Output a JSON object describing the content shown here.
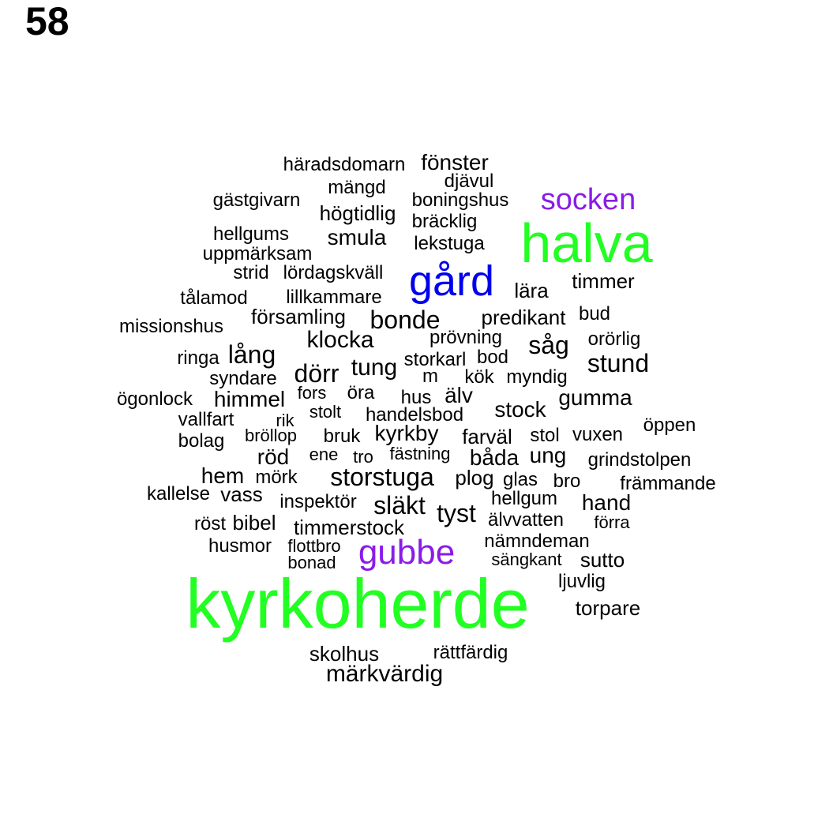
{
  "page_number": "58",
  "colors": {
    "default": "#000000",
    "green": "#22ff22",
    "blue": "#0000ee",
    "purple": "#8a1be8"
  },
  "words": [
    {
      "text": "kyrkoherde",
      "color": "green"
    },
    {
      "text": "halva",
      "color": "green"
    },
    {
      "text": "gård",
      "color": "blue"
    },
    {
      "text": "socken",
      "color": "purple"
    },
    {
      "text": "gubbe",
      "color": "purple"
    },
    {
      "text": "häradsdomarn"
    },
    {
      "text": "fönster"
    },
    {
      "text": "djävul"
    },
    {
      "text": "mängd"
    },
    {
      "text": "boningshus"
    },
    {
      "text": "gästgivarn"
    },
    {
      "text": "högtidlig"
    },
    {
      "text": "bräcklig"
    },
    {
      "text": "hellgums"
    },
    {
      "text": "smula"
    },
    {
      "text": "lekstuga"
    },
    {
      "text": "uppmärksam"
    },
    {
      "text": "strid"
    },
    {
      "text": "lördagskväll"
    },
    {
      "text": "timmer"
    },
    {
      "text": "lära"
    },
    {
      "text": "tålamod"
    },
    {
      "text": "lillkammare"
    },
    {
      "text": "församling"
    },
    {
      "text": "bonde"
    },
    {
      "text": "predikant"
    },
    {
      "text": "bud"
    },
    {
      "text": "missionshus"
    },
    {
      "text": "klocka"
    },
    {
      "text": "prövning"
    },
    {
      "text": "såg"
    },
    {
      "text": "orörlig"
    },
    {
      "text": "ringa"
    },
    {
      "text": "lång"
    },
    {
      "text": "storkarl"
    },
    {
      "text": "bod"
    },
    {
      "text": "stund"
    },
    {
      "text": "syndare"
    },
    {
      "text": "dörr"
    },
    {
      "text": "tung"
    },
    {
      "text": "m"
    },
    {
      "text": "kök"
    },
    {
      "text": "myndig"
    },
    {
      "text": "ögonlock"
    },
    {
      "text": "himmel"
    },
    {
      "text": "fors"
    },
    {
      "text": "öra"
    },
    {
      "text": "hus"
    },
    {
      "text": "älv"
    },
    {
      "text": "gumma"
    },
    {
      "text": "vallfart"
    },
    {
      "text": "rik"
    },
    {
      "text": "stolt"
    },
    {
      "text": "handelsbod"
    },
    {
      "text": "stock"
    },
    {
      "text": "öppen"
    },
    {
      "text": "bolag"
    },
    {
      "text": "bröllop"
    },
    {
      "text": "bruk"
    },
    {
      "text": "kyrkby"
    },
    {
      "text": "farväl"
    },
    {
      "text": "stol"
    },
    {
      "text": "vuxen"
    },
    {
      "text": "röd"
    },
    {
      "text": "ene"
    },
    {
      "text": "tro"
    },
    {
      "text": "fästning"
    },
    {
      "text": "båda"
    },
    {
      "text": "ung"
    },
    {
      "text": "grindstolpen"
    },
    {
      "text": "hem"
    },
    {
      "text": "mörk"
    },
    {
      "text": "storstuga"
    },
    {
      "text": "plog"
    },
    {
      "text": "glas"
    },
    {
      "text": "bro"
    },
    {
      "text": "främmande"
    },
    {
      "text": "kallelse"
    },
    {
      "text": "vass"
    },
    {
      "text": "inspektör"
    },
    {
      "text": "släkt"
    },
    {
      "text": "hellgum"
    },
    {
      "text": "hand"
    },
    {
      "text": "tyst"
    },
    {
      "text": "röst"
    },
    {
      "text": "bibel"
    },
    {
      "text": "timmerstock"
    },
    {
      "text": "älvvatten"
    },
    {
      "text": "förra"
    },
    {
      "text": "husmor"
    },
    {
      "text": "flottbro"
    },
    {
      "text": "nämndeman"
    },
    {
      "text": "bonad"
    },
    {
      "text": "sängkant"
    },
    {
      "text": "sutto"
    },
    {
      "text": "ljuvlig"
    },
    {
      "text": "torpare"
    },
    {
      "text": "skolhus"
    },
    {
      "text": "rättfärdig"
    },
    {
      "text": "märkvärdig"
    }
  ]
}
